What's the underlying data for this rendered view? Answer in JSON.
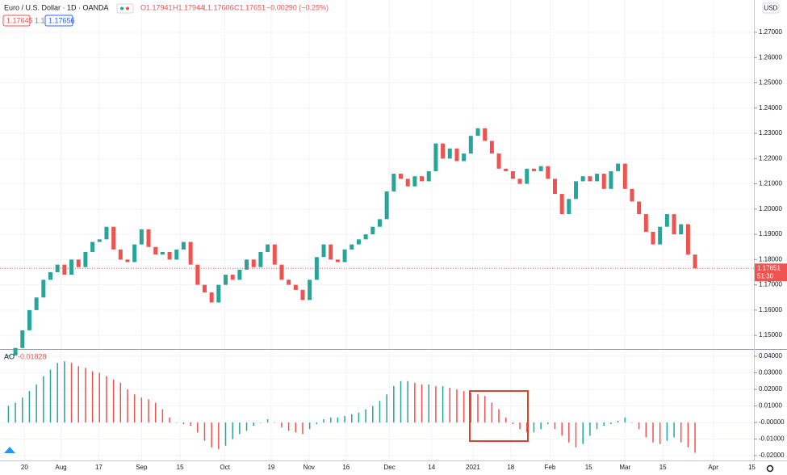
{
  "chart_data": [
    {
      "type": "candlestick",
      "title": "Euro / U.S. Dollar · 1D · OANDA",
      "ohlc": [
        "O1.17941",
        "H1.17944",
        "L1.17606",
        "C1.17651",
        "−0.00290 (−0.25%)"
      ],
      "bid": "1.17645",
      "quantity": "1.1",
      "ask": "1.17656",
      "currency": "USD",
      "countdown": "51:30",
      "up_color": "#26a69a",
      "down_color": "#ef5350",
      "close": [
        1.142,
        1.145,
        1.152,
        1.16,
        1.165,
        1.172,
        1.175,
        1.178,
        1.174,
        1.18,
        1.177,
        1.183,
        1.187,
        1.188,
        1.193,
        1.184,
        1.18,
        1.179,
        1.186,
        1.192,
        1.185,
        1.182,
        1.183,
        1.18,
        1.184,
        1.187,
        1.178,
        1.17,
        1.167,
        1.163,
        1.17,
        1.174,
        1.172,
        1.176,
        1.18,
        1.177,
        1.183,
        1.186,
        1.178,
        1.172,
        1.17,
        1.168,
        1.164,
        1.172,
        1.181,
        1.186,
        1.18,
        1.179,
        1.184,
        1.186,
        1.188,
        1.19,
        1.193,
        1.196,
        1.207,
        1.214,
        1.212,
        1.209,
        1.213,
        1.211,
        1.215,
        1.226,
        1.22,
        1.224,
        1.219,
        1.222,
        1.229,
        1.232,
        1.227,
        1.222,
        1.216,
        1.215,
        1.212,
        1.21,
        1.216,
        1.215,
        1.217,
        1.212,
        1.206,
        1.198,
        1.204,
        1.211,
        1.213,
        1.211,
        1.214,
        1.208,
        1.215,
        1.218,
        1.208,
        1.203,
        1.198,
        1.191,
        1.186,
        1.193,
        1.198,
        1.19,
        1.194,
        1.182,
        1.17651
      ],
      "xlim": [
        -1.2,
        106.4
      ],
      "ylim": [
        1.1446,
        1.2828
      ],
      "yticks": [
        {
          "value": 1.15,
          "label": "1.15000"
        },
        {
          "value": 1.16,
          "label": "1.16000"
        },
        {
          "value": 1.17,
          "label": "1.17000"
        },
        {
          "value": 1.18,
          "label": "1.18000"
        },
        {
          "value": 1.19,
          "label": "1.19000"
        },
        {
          "value": 1.2,
          "label": "1.20000"
        },
        {
          "value": 1.21,
          "label": "1.21000"
        },
        {
          "value": 1.22,
          "label": "1.22000"
        },
        {
          "value": 1.23,
          "label": "1.23000"
        },
        {
          "value": 1.24,
          "label": "1.24000"
        },
        {
          "value": 1.25,
          "label": "1.25000"
        },
        {
          "value": 1.26,
          "label": "1.26000"
        },
        {
          "value": 1.27,
          "label": "1.27000"
        }
      ],
      "grid": true
    },
    {
      "type": "bar",
      "name": "AO",
      "current": "-0.01828",
      "up_color": "#26a69a",
      "down_color": "#ef5350",
      "values": [
        0.01,
        0.012,
        0.015,
        0.019,
        0.023,
        0.028,
        0.032,
        0.036,
        0.037,
        0.036,
        0.034,
        0.033,
        0.031,
        0.03,
        0.028,
        0.026,
        0.024,
        0.02,
        0.017,
        0.015,
        0.014,
        0.012,
        0.008,
        0.003,
        0.0,
        -0.001,
        -0.002,
        -0.006,
        -0.011,
        -0.015,
        -0.016,
        -0.014,
        -0.01,
        -0.007,
        -0.005,
        -0.002,
        0.0,
        0.002,
        0.0,
        -0.003,
        -0.005,
        -0.006,
        -0.007,
        -0.004,
        -0.001,
        0.002,
        0.003,
        0.003,
        0.004,
        0.005,
        0.006,
        0.008,
        0.01,
        0.013,
        0.017,
        0.022,
        0.025,
        0.025,
        0.024,
        0.023,
        0.023,
        0.022,
        0.022,
        0.021,
        0.02,
        0.019,
        0.018,
        0.017,
        0.016,
        0.012,
        0.008,
        0.003,
        -0.001,
        -0.004,
        -0.006,
        -0.006,
        -0.004,
        -0.001,
        -0.004,
        -0.008,
        -0.012,
        -0.015,
        -0.013,
        -0.008,
        -0.004,
        -0.002,
        -0.001,
        0.001,
        0.003,
        0.0,
        -0.004,
        -0.009,
        -0.012,
        -0.013,
        -0.011,
        -0.009,
        -0.012,
        -0.015,
        -0.01828
      ],
      "xlim": [
        -1.2,
        106.4
      ],
      "ylim": [
        -0.0229,
        0.0439
      ],
      "yticks": [
        {
          "value": 0.04,
          "label": "0.04000"
        },
        {
          "value": 0.03,
          "label": "0.03000"
        },
        {
          "value": 0.02,
          "label": "0.02000"
        },
        {
          "value": 0.01,
          "label": "0.01000"
        },
        {
          "value": 0,
          "label": "-0.00000"
        },
        {
          "value": -0.01,
          "label": "-0.01000"
        },
        {
          "value": -0.02,
          "label": "-0.02000"
        }
      ],
      "xticks": [
        {
          "value": 2.3,
          "label": "20"
        },
        {
          "value": 7.5,
          "label": "Aug"
        },
        {
          "value": 12.9,
          "label": "17"
        },
        {
          "value": 19,
          "label": "Sep"
        },
        {
          "value": 24.5,
          "label": "15"
        },
        {
          "value": 30.9,
          "label": "Oct"
        },
        {
          "value": 37.5,
          "label": "19"
        },
        {
          "value": 42.9,
          "label": "Nov"
        },
        {
          "value": 48.2,
          "label": "16"
        },
        {
          "value": 54.4,
          "label": "Dec"
        },
        {
          "value": 60.4,
          "label": "14"
        },
        {
          "value": 66.3,
          "label": "2021"
        },
        {
          "value": 71.7,
          "label": "18"
        },
        {
          "value": 77.3,
          "label": "Feb"
        },
        {
          "value": 82.8,
          "label": "15"
        },
        {
          "value": 88,
          "label": "Mar"
        },
        {
          "value": 93.4,
          "label": "15"
        },
        {
          "value": 100.6,
          "label": "Apr"
        },
        {
          "value": 106.1,
          "label": "15"
        }
      ],
      "grid": true
    }
  ]
}
